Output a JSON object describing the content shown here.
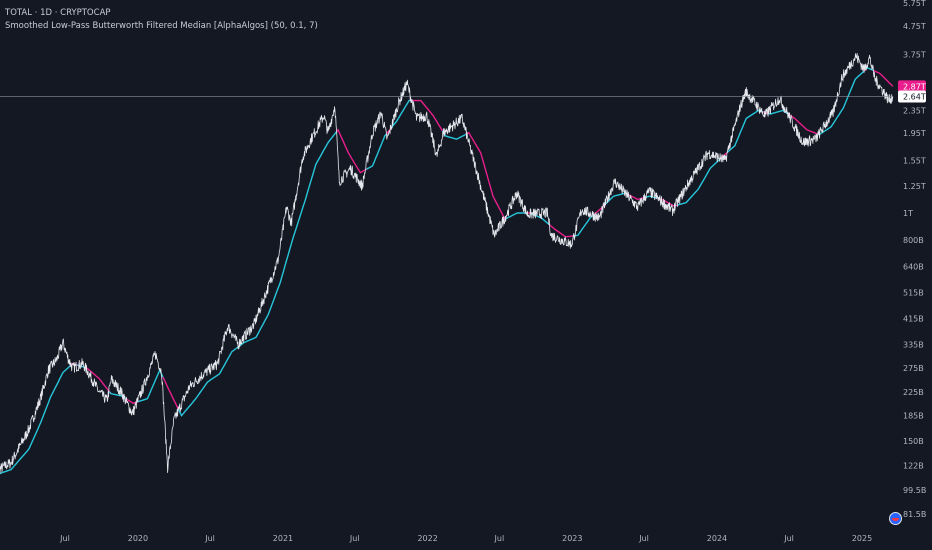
{
  "header": {
    "symbol_line": "TOTAL · 1D · CRYPTOCAP",
    "indicator_line": "Smoothed Low-Pass Butterworth Filtered Median [AlphaAlgos] (50, 0.1, 7)"
  },
  "colors": {
    "background": "#141823",
    "price": "#e6e8ee",
    "filter_bull": "#26c6da",
    "filter_bear": "#e91e8c",
    "crosshair": "#8a8f9c",
    "price_label_bg": "#ffffff",
    "filter_label_bg": "#e91e8c"
  },
  "chart_data": {
    "type": "line",
    "scale": "log",
    "series": [],
    "price_points": [
      [
        "2019-01-01",
        115
      ],
      [
        "2019-02-15",
        125
      ],
      [
        "2019-04-01",
        165
      ],
      [
        "2019-05-01",
        215
      ],
      [
        "2019-05-20",
        270
      ],
      [
        "2019-06-10",
        295
      ],
      [
        "2019-06-26",
        340
      ],
      [
        "2019-07-08",
        300
      ],
      [
        "2019-07-20",
        275
      ],
      [
        "2019-08-15",
        285
      ],
      [
        "2019-09-01",
        260
      ],
      [
        "2019-09-25",
        225
      ],
      [
        "2019-10-15",
        210
      ],
      [
        "2019-10-26",
        250
      ],
      [
        "2019-11-20",
        225
      ],
      [
        "2019-12-18",
        188
      ],
      [
        "2020-01-15",
        235
      ],
      [
        "2020-02-14",
        310
      ],
      [
        "2020-03-01",
        265
      ],
      [
        "2020-03-12",
        145
      ],
      [
        "2020-03-16",
        120
      ],
      [
        "2020-04-01",
        178
      ],
      [
        "2020-05-10",
        235
      ],
      [
        "2020-06-15",
        262
      ],
      [
        "2020-07-20",
        285
      ],
      [
        "2020-08-15",
        390
      ],
      [
        "2020-09-10",
        335
      ],
      [
        "2020-10-20",
        395
      ],
      [
        "2020-11-25",
        540
      ],
      [
        "2020-12-20",
        680
      ],
      [
        "2021-01-10",
        1050
      ],
      [
        "2021-01-22",
        920
      ],
      [
        "2021-02-20",
        1600
      ],
      [
        "2021-03-13",
        1850
      ],
      [
        "2021-04-14",
        2250
      ],
      [
        "2021-04-25",
        1950
      ],
      [
        "2021-05-12",
        2450
      ],
      [
        "2021-05-23",
        1300
      ],
      [
        "2021-06-20",
        1450
      ],
      [
        "2021-07-20",
        1250
      ],
      [
        "2021-08-15",
        1950
      ],
      [
        "2021-09-06",
        2300
      ],
      [
        "2021-09-21",
        1850
      ],
      [
        "2021-10-20",
        2500
      ],
      [
        "2021-11-10",
        2950
      ],
      [
        "2021-12-04",
        2200
      ],
      [
        "2021-12-30",
        2250
      ],
      [
        "2022-01-24",
        1600
      ],
      [
        "2022-02-10",
        1950
      ],
      [
        "2022-03-29",
        2200
      ],
      [
        "2022-05-12",
        1300
      ],
      [
        "2022-06-18",
        830
      ],
      [
        "2022-07-15",
        960
      ],
      [
        "2022-08-14",
        1180
      ],
      [
        "2022-09-10",
        990
      ],
      [
        "2022-10-30",
        1000
      ],
      [
        "2022-11-09",
        830
      ],
      [
        "2022-12-30",
        770
      ],
      [
        "2023-01-25",
        1030
      ],
      [
        "2023-03-10",
        960
      ],
      [
        "2023-04-18",
        1300
      ],
      [
        "2023-06-15",
        1050
      ],
      [
        "2023-07-14",
        1200
      ],
      [
        "2023-09-11",
        1020
      ],
      [
        "2023-10-24",
        1300
      ],
      [
        "2023-12-10",
        1650
      ],
      [
        "2024-01-22",
        1550
      ],
      [
        "2024-02-28",
        2400
      ],
      [
        "2024-03-14",
        2750
      ],
      [
        "2024-05-01",
        2250
      ],
      [
        "2024-06-07",
        2600
      ],
      [
        "2024-08-05",
        1800
      ],
      [
        "2024-09-06",
        1850
      ],
      [
        "2024-10-20",
        2300
      ],
      [
        "2024-11-12",
        3100
      ],
      [
        "2024-12-17",
        3700
      ],
      [
        "2025-01-07",
        3300
      ],
      [
        "2025-01-20",
        3650
      ],
      [
        "2025-02-03",
        3050
      ],
      [
        "2025-02-24",
        2750
      ],
      [
        "2025-03-10",
        2550
      ],
      [
        "2025-03-20",
        2640
      ]
    ],
    "filter_points": [
      [
        "2019-01-01",
        112
      ],
      [
        "2019-02-15",
        118
      ],
      [
        "2019-04-01",
        140
      ],
      [
        "2019-05-01",
        175
      ],
      [
        "2019-05-25",
        215
      ],
      [
        "2019-06-26",
        265
      ],
      [
        "2019-07-20",
        285
      ],
      [
        "2019-08-25",
        275
      ],
      [
        "2019-09-25",
        252
      ],
      [
        "2019-10-25",
        222
      ],
      [
        "2019-11-20",
        218
      ],
      [
        "2019-12-20",
        205
      ],
      [
        "2020-01-25",
        213
      ],
      [
        "2020-02-25",
        270
      ],
      [
        "2020-03-20",
        228
      ],
      [
        "2020-04-20",
        185
      ],
      [
        "2020-05-25",
        212
      ],
      [
        "2020-06-25",
        245
      ],
      [
        "2020-07-25",
        262
      ],
      [
        "2020-08-25",
        315
      ],
      [
        "2020-09-25",
        340
      ],
      [
        "2020-10-25",
        355
      ],
      [
        "2020-11-25",
        430
      ],
      [
        "2020-12-25",
        560
      ],
      [
        "2021-01-25",
        800
      ],
      [
        "2021-02-25",
        1100
      ],
      [
        "2021-03-25",
        1500
      ],
      [
        "2021-04-25",
        1800
      ],
      [
        "2021-05-20",
        2000
      ],
      [
        "2021-06-15",
        1650
      ],
      [
        "2021-07-15",
        1400
      ],
      [
        "2021-08-15",
        1480
      ],
      [
        "2021-09-15",
        1900
      ],
      [
        "2021-10-15",
        2150
      ],
      [
        "2021-11-15",
        2550
      ],
      [
        "2021-12-15",
        2550
      ],
      [
        "2022-01-15",
        2250
      ],
      [
        "2022-02-15",
        1900
      ],
      [
        "2022-03-15",
        1850
      ],
      [
        "2022-04-15",
        1950
      ],
      [
        "2022-05-15",
        1650
      ],
      [
        "2022-06-15",
        1150
      ],
      [
        "2022-07-15",
        950
      ],
      [
        "2022-08-15",
        1000
      ],
      [
        "2022-09-15",
        1000
      ],
      [
        "2022-10-15",
        960
      ],
      [
        "2022-11-15",
        880
      ],
      [
        "2022-12-15",
        820
      ],
      [
        "2023-01-15",
        830
      ],
      [
        "2023-02-15",
        960
      ],
      [
        "2023-03-15",
        1040
      ],
      [
        "2023-04-15",
        1150
      ],
      [
        "2023-05-15",
        1180
      ],
      [
        "2023-06-15",
        1120
      ],
      [
        "2023-07-15",
        1150
      ],
      [
        "2023-08-15",
        1120
      ],
      [
        "2023-09-15",
        1060
      ],
      [
        "2023-10-15",
        1090
      ],
      [
        "2023-11-15",
        1220
      ],
      [
        "2023-12-15",
        1450
      ],
      [
        "2024-01-15",
        1600
      ],
      [
        "2024-02-15",
        1750
      ],
      [
        "2024-03-15",
        2200
      ],
      [
        "2024-04-15",
        2350
      ],
      [
        "2024-05-15",
        2280
      ],
      [
        "2024-06-15",
        2350
      ],
      [
        "2024-07-15",
        2200
      ],
      [
        "2024-08-15",
        2000
      ],
      [
        "2024-09-15",
        1920
      ],
      [
        "2024-10-15",
        2050
      ],
      [
        "2024-11-15",
        2400
      ],
      [
        "2024-12-15",
        3050
      ],
      [
        "2025-01-15",
        3350
      ],
      [
        "2025-02-15",
        3200
      ],
      [
        "2025-03-20",
        2870
      ]
    ],
    "y_ticks": [
      {
        "label": "5.75T",
        "value": 5750
      },
      {
        "label": "4.75T",
        "value": 4750
      },
      {
        "label": "3.75T",
        "value": 3750
      },
      {
        "label": "2.35T",
        "value": 2350
      },
      {
        "label": "1.95T",
        "value": 1950
      },
      {
        "label": "1.55T",
        "value": 1550
      },
      {
        "label": "1.25T",
        "value": 1250
      },
      {
        "label": "1T",
        "value": 1000
      },
      {
        "label": "800B",
        "value": 800
      },
      {
        "label": "640B",
        "value": 640
      },
      {
        "label": "515B",
        "value": 515
      },
      {
        "label": "415B",
        "value": 415
      },
      {
        "label": "335B",
        "value": 335
      },
      {
        "label": "275B",
        "value": 275
      },
      {
        "label": "225B",
        "value": 225
      },
      {
        "label": "185B",
        "value": 185
      },
      {
        "label": "150B",
        "value": 150
      },
      {
        "label": "122B",
        "value": 122
      },
      {
        "label": "99.5B",
        "value": 99.5
      },
      {
        "label": "81.5B",
        "value": 81.5
      }
    ],
    "x_ticks": [
      {
        "label": "Jul",
        "date": "2019-07-01"
      },
      {
        "label": "2020",
        "date": "2020-01-01"
      },
      {
        "label": "Jul",
        "date": "2020-07-01"
      },
      {
        "label": "2021",
        "date": "2021-01-01"
      },
      {
        "label": "Jul",
        "date": "2021-07-01"
      },
      {
        "label": "2022",
        "date": "2022-01-01"
      },
      {
        "label": "Jul",
        "date": "2022-07-01"
      },
      {
        "label": "2023",
        "date": "2023-01-01"
      },
      {
        "label": "Jul",
        "date": "2023-07-01"
      },
      {
        "label": "2024",
        "date": "2024-01-01"
      },
      {
        "label": "Jul",
        "date": "2024-07-01"
      },
      {
        "label": "2025",
        "date": "2025-01-01"
      }
    ],
    "last_price": {
      "label": "2.64T",
      "value": 2640
    },
    "filter_value": {
      "label": "2.87T",
      "value": 2870
    },
    "xlim": [
      "2019-01-01",
      "2025-03-20"
    ],
    "ylim": [
      81.5,
      5750
    ]
  }
}
